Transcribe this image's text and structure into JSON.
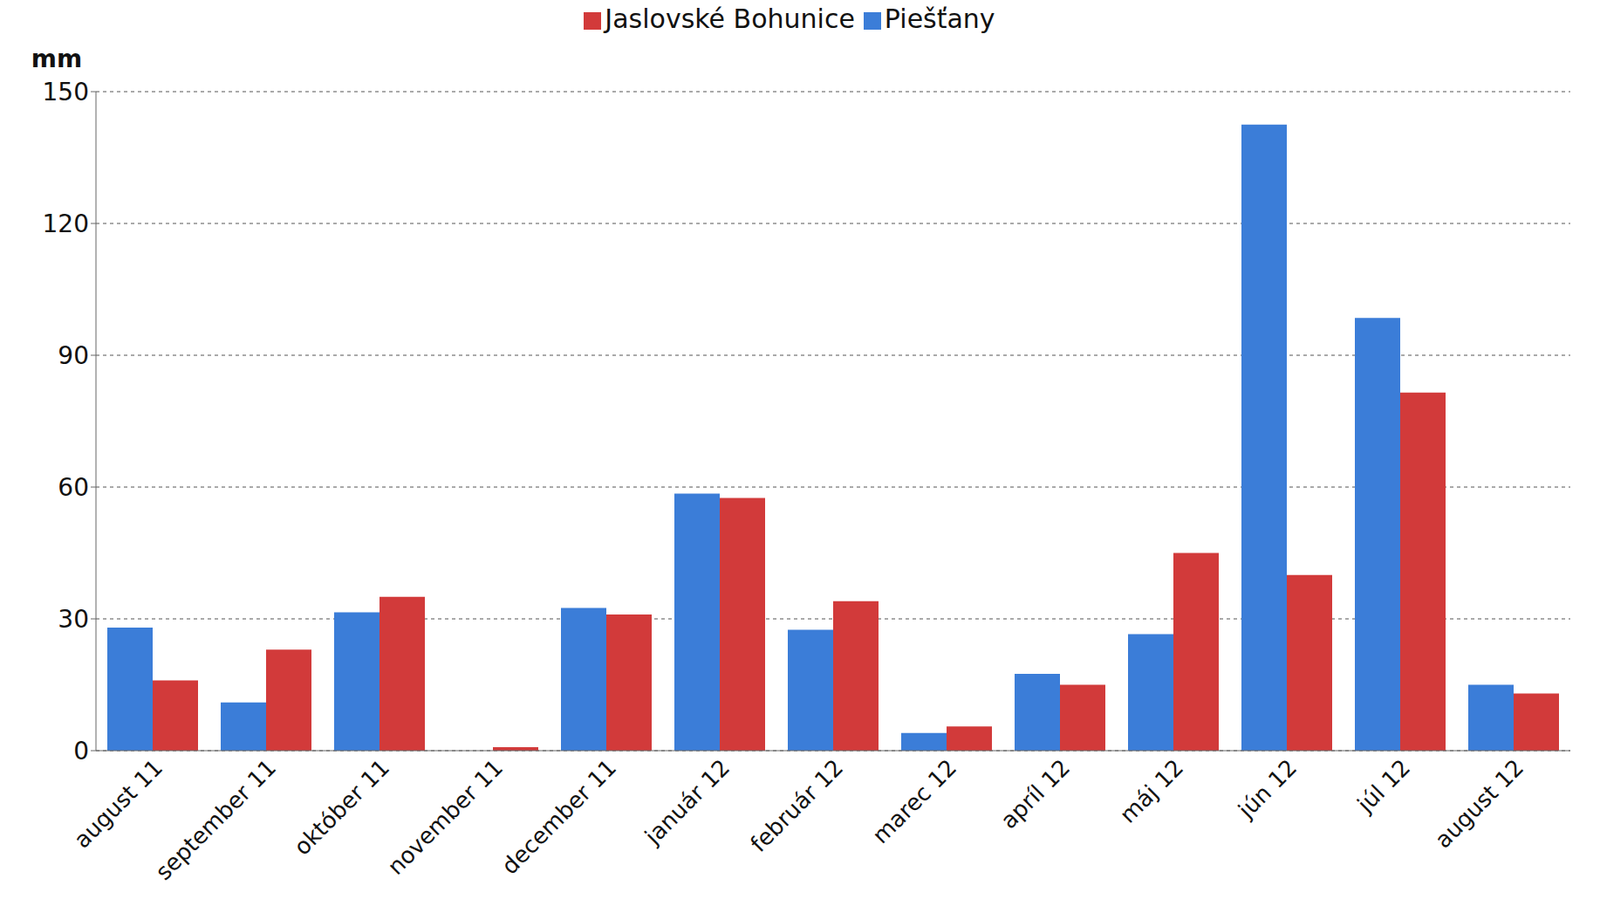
{
  "chart_data": {
    "type": "bar",
    "y_label": "mm",
    "categories": [
      "august 11",
      "september 11",
      "október 11",
      "november 11",
      "december 11",
      "január 12",
      "február 12",
      "marec 12",
      "apríl 12",
      "máj 12",
      "jún 12",
      "júl 12",
      "august 12"
    ],
    "series": [
      {
        "name": "Piešťany",
        "color": "#3b7dd8",
        "values": [
          28,
          11,
          31.5,
          0,
          32.5,
          58.5,
          27.5,
          4,
          17.5,
          26.5,
          142.5,
          98.5,
          15
        ]
      },
      {
        "name": "Jaslovské Bohunice",
        "color": "#d23a3a",
        "values": [
          16,
          23,
          35,
          0.8,
          31,
          57.5,
          34,
          5.5,
          15,
          45,
          40,
          81.5,
          13
        ]
      }
    ],
    "ylim": [
      0,
      150
    ],
    "yticks": [
      0,
      30,
      60,
      90,
      120,
      150
    ],
    "grid": true,
    "legend": "top"
  }
}
